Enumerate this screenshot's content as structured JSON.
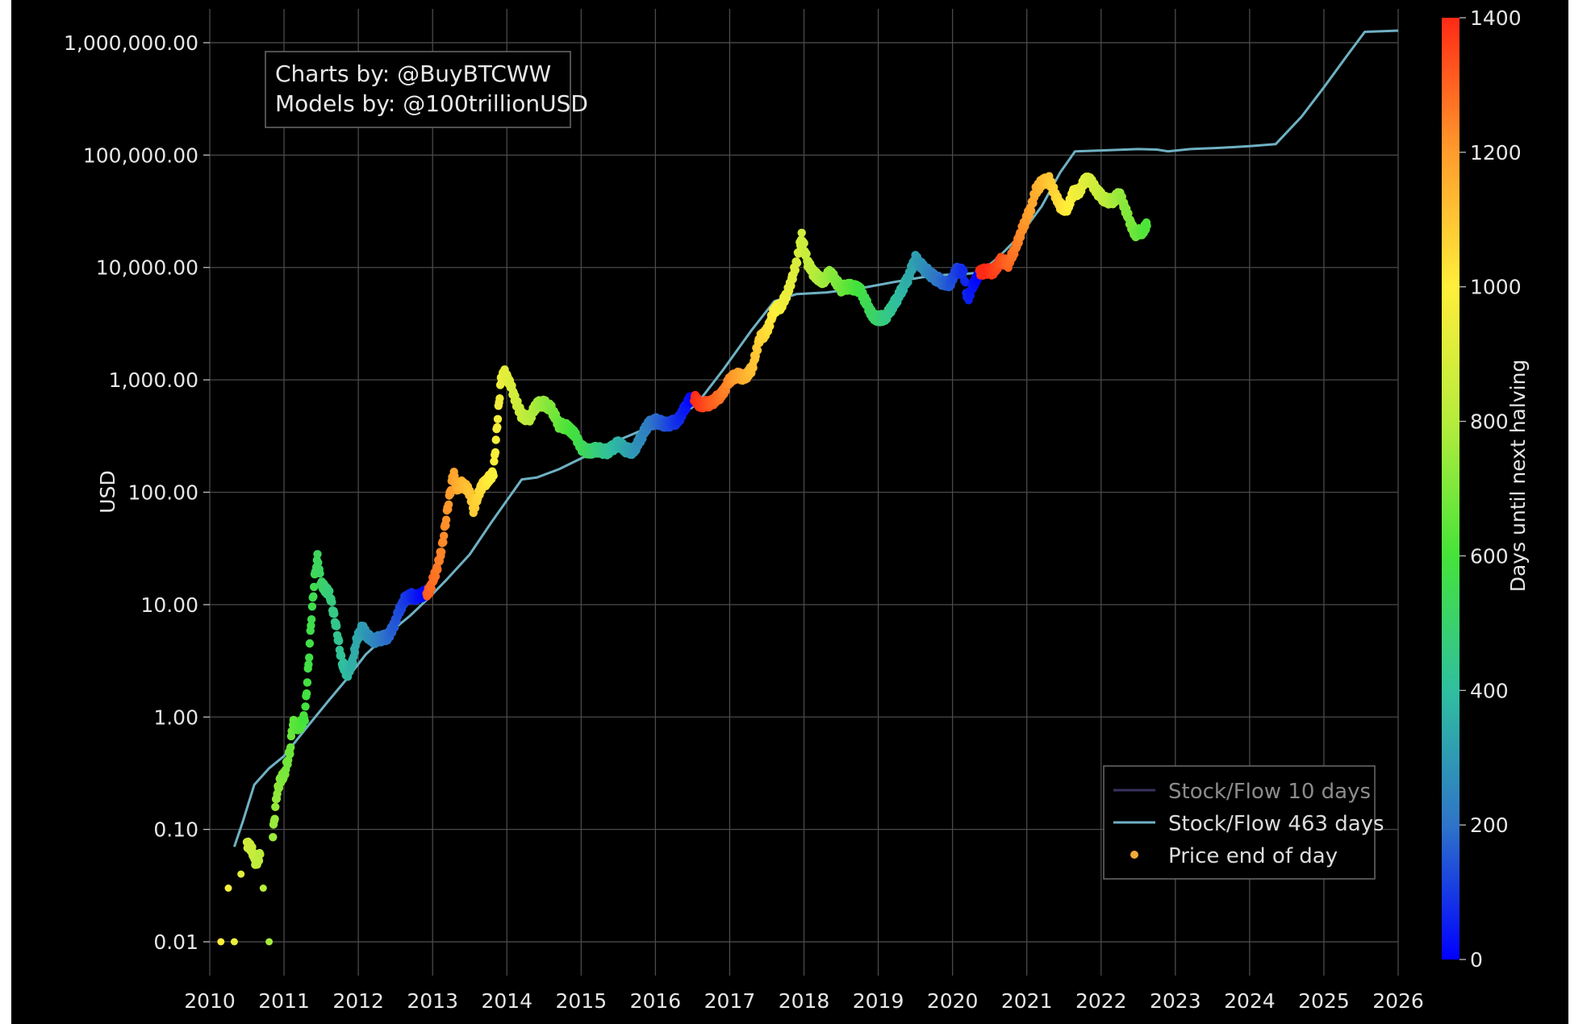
{
  "credits": {
    "line1": "Charts by: @BuyBTCWW",
    "line2": "Models by: @100trillionUSD"
  },
  "chart_data": {
    "type": "scatter",
    "ylabel": "USD",
    "yscale": "log",
    "ylim": [
      0.005,
      2000000
    ],
    "xlim": [
      2010,
      2026
    ],
    "x_ticks": [
      "2010",
      "2011",
      "2012",
      "2013",
      "2014",
      "2015",
      "2016",
      "2017",
      "2018",
      "2019",
      "2020",
      "2021",
      "2022",
      "2023",
      "2024",
      "2025",
      "2026"
    ],
    "y_ticks": [
      {
        "value": 0.01,
        "label": "0.01"
      },
      {
        "value": 0.1,
        "label": "0.10"
      },
      {
        "value": 1,
        "label": "1.00"
      },
      {
        "value": 10,
        "label": "10.00"
      },
      {
        "value": 100,
        "label": "100.00"
      },
      {
        "value": 1000,
        "label": "1,000.00"
      },
      {
        "value": 10000,
        "label": "10,000.00"
      },
      {
        "value": 100000,
        "label": "100,000.00"
      },
      {
        "value": 1000000,
        "label": "1,000,000.00"
      }
    ],
    "grid": true,
    "legend_position": "bottom-right",
    "colorbar": {
      "label": "Days until next halving",
      "range": [
        0,
        1400
      ],
      "ticks": [
        0,
        200,
        400,
        600,
        800,
        1000,
        1200,
        1400
      ],
      "colors": [
        "#0000ff",
        "#2f74c8",
        "#2fbf9f",
        "#45e33a",
        "#b6ec3c",
        "#ffef3a",
        "#ff9c2c",
        "#ff2a15"
      ]
    },
    "halvings": [
      2012.91,
      2016.52,
      2020.36,
      2024.3
    ],
    "series": [
      {
        "name": "Stock/Flow 10 days",
        "kind": "line",
        "color": "#39325e",
        "points": []
      },
      {
        "name": "Stock/Flow 463 days",
        "kind": "line",
        "color": "#6fb1c3",
        "points": [
          [
            2010.33,
            0.07
          ],
          [
            2010.45,
            0.12
          ],
          [
            2010.6,
            0.25
          ],
          [
            2010.8,
            0.35
          ],
          [
            2011.0,
            0.45
          ],
          [
            2011.3,
            0.8
          ],
          [
            2011.6,
            1.4
          ],
          [
            2011.85,
            2.2
          ],
          [
            2012.1,
            3.6
          ],
          [
            2012.4,
            5.5
          ],
          [
            2012.7,
            8.0
          ],
          [
            2012.95,
            11.5
          ],
          [
            2013.2,
            17
          ],
          [
            2013.5,
            28
          ],
          [
            2013.8,
            55
          ],
          [
            2014.2,
            130
          ],
          [
            2014.4,
            135
          ],
          [
            2014.7,
            160
          ],
          [
            2015.0,
            200
          ],
          [
            2015.5,
            290
          ],
          [
            2016.0,
            400
          ],
          [
            2016.3,
            470
          ],
          [
            2016.55,
            600
          ],
          [
            2016.9,
            1200
          ],
          [
            2017.3,
            2800
          ],
          [
            2017.6,
            5000
          ],
          [
            2017.9,
            5800
          ],
          [
            2018.3,
            6000
          ],
          [
            2018.8,
            6600
          ],
          [
            2019.2,
            7400
          ],
          [
            2019.6,
            8200
          ],
          [
            2019.9,
            8600
          ],
          [
            2020.1,
            8700
          ],
          [
            2020.36,
            9000
          ],
          [
            2020.6,
            12000
          ],
          [
            2020.9,
            19000
          ],
          [
            2021.2,
            35000
          ],
          [
            2021.45,
            70000
          ],
          [
            2021.65,
            108000
          ],
          [
            2022.0,
            110000
          ],
          [
            2022.5,
            113000
          ],
          [
            2022.75,
            112000
          ],
          [
            2022.9,
            108000
          ],
          [
            2023.2,
            113000
          ],
          [
            2023.6,
            116000
          ],
          [
            2024.0,
            120000
          ],
          [
            2024.35,
            125000
          ],
          [
            2024.7,
            220000
          ],
          [
            2025.0,
            400000
          ],
          [
            2025.3,
            750000
          ],
          [
            2025.55,
            1250000
          ],
          [
            2026.0,
            1280000
          ]
        ]
      },
      {
        "name": "Price end of day",
        "kind": "scatter",
        "color": "#f2a93b",
        "points": [
          [
            2010.15,
            0.01
          ],
          [
            2010.25,
            0.03
          ],
          [
            2010.33,
            0.01
          ],
          [
            2010.42,
            0.04
          ],
          [
            2010.5,
            0.075
          ],
          [
            2010.57,
            0.065
          ],
          [
            2010.62,
            0.05
          ],
          [
            2010.68,
            0.06
          ],
          [
            2010.72,
            0.03
          ],
          [
            2010.8,
            0.01
          ],
          [
            2010.85,
            0.09
          ],
          [
            2010.9,
            0.2
          ],
          [
            2010.95,
            0.28
          ],
          [
            2011.0,
            0.3
          ],
          [
            2011.08,
            0.5
          ],
          [
            2011.12,
            0.9
          ],
          [
            2011.2,
            0.8
          ],
          [
            2011.28,
            1.0
          ],
          [
            2011.33,
            3.0
          ],
          [
            2011.37,
            8.0
          ],
          [
            2011.42,
            20.0
          ],
          [
            2011.45,
            26.0
          ],
          [
            2011.5,
            15.0
          ],
          [
            2011.55,
            14.0
          ],
          [
            2011.62,
            12.0
          ],
          [
            2011.7,
            6.5
          ],
          [
            2011.78,
            3.0
          ],
          [
            2011.85,
            2.4
          ],
          [
            2011.92,
            3.0
          ],
          [
            2011.98,
            5.0
          ],
          [
            2012.05,
            6.2
          ],
          [
            2012.12,
            5.3
          ],
          [
            2012.2,
            4.8
          ],
          [
            2012.3,
            5.0
          ],
          [
            2012.4,
            5.2
          ],
          [
            2012.48,
            6.5
          ],
          [
            2012.55,
            8.8
          ],
          [
            2012.62,
            11.0
          ],
          [
            2012.7,
            12.0
          ],
          [
            2012.8,
            11.5
          ],
          [
            2012.87,
            12.5
          ],
          [
            2012.95,
            13.0
          ],
          [
            2013.05,
            20.0
          ],
          [
            2013.12,
            30.0
          ],
          [
            2013.2,
            70.0
          ],
          [
            2013.28,
            150.0
          ],
          [
            2013.33,
            110.0
          ],
          [
            2013.4,
            120.0
          ],
          [
            2013.5,
            100.0
          ],
          [
            2013.55,
            70.0
          ],
          [
            2013.65,
            110.0
          ],
          [
            2013.75,
            130.0
          ],
          [
            2013.82,
            150.0
          ],
          [
            2013.87,
            400.0
          ],
          [
            2013.92,
            1000.0
          ],
          [
            2013.97,
            1150.0
          ],
          [
            2014.05,
            900.0
          ],
          [
            2014.12,
            650.0
          ],
          [
            2014.2,
            480.0
          ],
          [
            2014.3,
            450.0
          ],
          [
            2014.4,
            600.0
          ],
          [
            2014.5,
            620.0
          ],
          [
            2014.6,
            550.0
          ],
          [
            2014.7,
            400.0
          ],
          [
            2014.8,
            380.0
          ],
          [
            2014.92,
            320.0
          ],
          [
            2015.0,
            250.0
          ],
          [
            2015.1,
            230.0
          ],
          [
            2015.2,
            240.0
          ],
          [
            2015.35,
            230.0
          ],
          [
            2015.5,
            270.0
          ],
          [
            2015.6,
            240.0
          ],
          [
            2015.7,
            230.0
          ],
          [
            2015.8,
            300.0
          ],
          [
            2015.9,
            400.0
          ],
          [
            2016.0,
            430.0
          ],
          [
            2016.15,
            400.0
          ],
          [
            2016.3,
            430.0
          ],
          [
            2016.45,
            650.0
          ],
          [
            2016.52,
            700.0
          ],
          [
            2016.6,
            600.0
          ],
          [
            2016.75,
            620.0
          ],
          [
            2016.9,
            750.0
          ],
          [
            2017.0,
            1000.0
          ],
          [
            2017.1,
            1100.0
          ],
          [
            2017.2,
            1050.0
          ],
          [
            2017.3,
            1250.0
          ],
          [
            2017.4,
            2300.0
          ],
          [
            2017.5,
            2700.0
          ],
          [
            2017.6,
            4200.0
          ],
          [
            2017.7,
            4600.0
          ],
          [
            2017.8,
            6500.0
          ],
          [
            2017.9,
            11000.0
          ],
          [
            2017.97,
            19000.0
          ],
          [
            2018.05,
            11000.0
          ],
          [
            2018.12,
            9000.0
          ],
          [
            2018.25,
            7500.0
          ],
          [
            2018.35,
            9000.0
          ],
          [
            2018.5,
            6500.0
          ],
          [
            2018.6,
            6800.0
          ],
          [
            2018.75,
            6400.0
          ],
          [
            2018.9,
            4000.0
          ],
          [
            2018.97,
            3500.0
          ],
          [
            2019.1,
            3600.0
          ],
          [
            2019.25,
            5200.0
          ],
          [
            2019.4,
            8000.0
          ],
          [
            2019.5,
            12000.0
          ],
          [
            2019.6,
            10000.0
          ],
          [
            2019.75,
            8200.0
          ],
          [
            2019.85,
            7500.0
          ],
          [
            2019.97,
            7200.0
          ],
          [
            2020.05,
            9500.0
          ],
          [
            2020.15,
            9000.0
          ],
          [
            2020.2,
            5200.0
          ],
          [
            2020.3,
            7500.0
          ],
          [
            2020.36,
            9000.0
          ],
          [
            2020.45,
            9300.0
          ],
          [
            2020.55,
            9200.0
          ],
          [
            2020.65,
            11500.0
          ],
          [
            2020.75,
            10800.0
          ],
          [
            2020.85,
            15000.0
          ],
          [
            2020.95,
            23000.0
          ],
          [
            2021.05,
            33000.0
          ],
          [
            2021.12,
            48000.0
          ],
          [
            2021.2,
            57000.0
          ],
          [
            2021.3,
            60000.0
          ],
          [
            2021.38,
            45000.0
          ],
          [
            2021.45,
            35000.0
          ],
          [
            2021.55,
            33000.0
          ],
          [
            2021.62,
            46000.0
          ],
          [
            2021.7,
            47000.0
          ],
          [
            2021.8,
            62000.0
          ],
          [
            2021.87,
            57000.0
          ],
          [
            2021.95,
            47000.0
          ],
          [
            2022.05,
            40000.0
          ],
          [
            2022.15,
            39000.0
          ],
          [
            2022.25,
            45000.0
          ],
          [
            2022.35,
            30000.0
          ],
          [
            2022.45,
            20000.0
          ],
          [
            2022.55,
            21000.0
          ],
          [
            2022.62,
            23500.0
          ]
        ]
      }
    ]
  }
}
